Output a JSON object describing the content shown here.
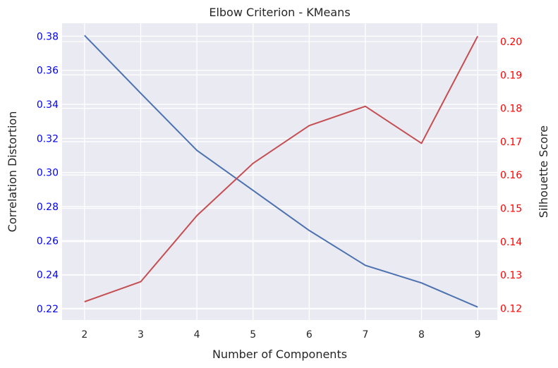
{
  "chart_data": {
    "type": "line",
    "title": "Elbow Criterion - KMeans",
    "xlabel": "Number of Components",
    "x": [
      2,
      3,
      4,
      5,
      6,
      7,
      8,
      9
    ],
    "xlim": [
      1.6,
      9.35
    ],
    "left_axis": {
      "label": "Correlation Distortion",
      "color": "#0000ff",
      "ylim": [
        0.2134,
        0.3876
      ],
      "ticks": [
        "0.22",
        "0.24",
        "0.26",
        "0.28",
        "0.30",
        "0.32",
        "0.34",
        "0.36",
        "0.38"
      ]
    },
    "right_axis": {
      "label": "Silhouette Score",
      "color": "#ff0000",
      "ylim": [
        0.1165,
        0.2055
      ],
      "ticks": [
        "0.12",
        "0.13",
        "0.14",
        "0.15",
        "0.16",
        "0.17",
        "0.18",
        "0.19",
        "0.20"
      ]
    },
    "series": [
      {
        "axis": "left",
        "color": "#4c72b0",
        "values": [
          0.3805,
          0.3465,
          0.313,
          0.2895,
          0.266,
          0.2455,
          0.2352,
          0.221
        ]
      },
      {
        "axis": "right",
        "color": "#c44e52",
        "values": [
          0.122,
          0.128,
          0.1478,
          0.1635,
          0.1748,
          0.1806,
          0.1695,
          0.2016
        ]
      }
    ],
    "grid": true,
    "background": "#eaeaf2",
    "tick_label_color": "#262626"
  }
}
